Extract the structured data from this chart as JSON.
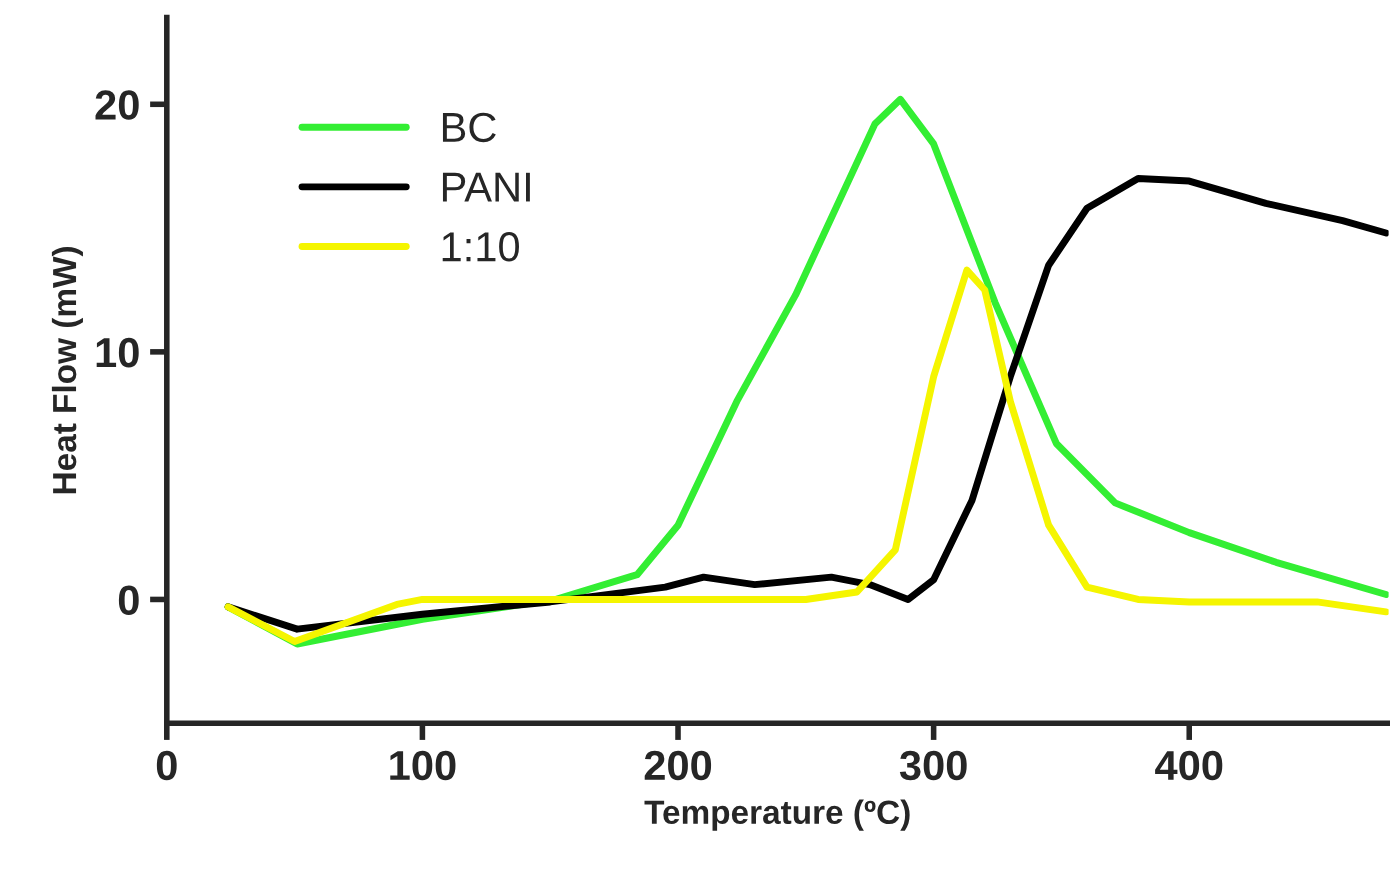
{
  "chart_data": {
    "type": "line",
    "xlabel": "Temperature (ºC)",
    "ylabel": "Heat Flow (mW)",
    "xlim": [
      0,
      478
    ],
    "ylim": [
      -5,
      23.5
    ],
    "xticks": [
      0,
      100,
      200,
      300,
      400
    ],
    "yticks": [
      0,
      10,
      20
    ],
    "grid": false,
    "legend": "top left",
    "marker": "none",
    "line_style": "solid",
    "series": [
      {
        "name": "BC",
        "color": "#33ee33",
        "x": [
          24,
          51,
          100,
          152,
          184,
          200,
          223,
          246,
          277,
          287,
          300,
          324,
          348,
          371,
          400,
          434,
          477
        ],
        "values": [
          -0.3,
          -1.8,
          -0.8,
          0,
          1,
          3,
          8,
          12.3,
          19.2,
          20.2,
          18.4,
          12,
          6.3,
          3.9,
          2.7,
          1.5,
          0.2
        ]
      },
      {
        "name": "PANI",
        "color": "#000000",
        "x": [
          24,
          51,
          100,
          150,
          195,
          210,
          230,
          260,
          275,
          290,
          300,
          315,
          330,
          345,
          360,
          380,
          400,
          430,
          460,
          477
        ],
        "values": [
          -0.3,
          -1.2,
          -0.6,
          -0.1,
          0.5,
          0.9,
          0.6,
          0.9,
          0.6,
          0,
          0.8,
          4,
          9,
          13.5,
          15.8,
          17,
          16.9,
          16,
          15.3,
          14.8
        ]
      },
      {
        "name": "1:10",
        "color": "#f5f500",
        "x": [
          24,
          50,
          90,
          100,
          150,
          200,
          250,
          270,
          285,
          300,
          313,
          320,
          330,
          345,
          360,
          380,
          400,
          450,
          477
        ],
        "values": [
          -0.3,
          -1.7,
          -0.2,
          0,
          0,
          0,
          0,
          0.3,
          2,
          9,
          13.3,
          12.5,
          8,
          3,
          0.5,
          0,
          -0.1,
          -0.1,
          -0.5
        ]
      }
    ]
  }
}
